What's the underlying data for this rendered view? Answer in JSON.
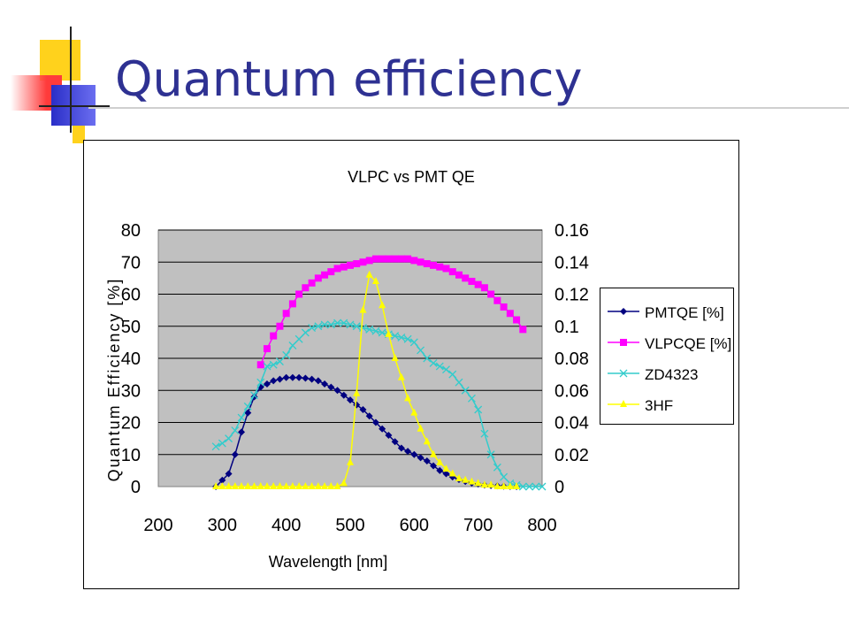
{
  "slide": {
    "title": "Quantum efficiency"
  },
  "colors": {
    "title": "#2e3192",
    "plot_bg": "#c0c0c0",
    "deco_yellow": "#ffd21c",
    "deco_red": "#ff3b3b",
    "deco_blue": "#3b3fd8"
  },
  "chart_data": {
    "type": "line",
    "title": "VLPC vs PMT QE",
    "xlabel": "Wavelength [nm]",
    "ylabel": "Quantum Efficiency [%]",
    "y2label": "",
    "xlim": [
      200,
      800
    ],
    "ylim": [
      0,
      80
    ],
    "y2lim": [
      0,
      0.16
    ],
    "x_ticks": [
      "200",
      "300",
      "400",
      "500",
      "600",
      "700",
      "800"
    ],
    "y_ticks": [
      "0",
      "10",
      "20",
      "30",
      "40",
      "50",
      "60",
      "70",
      "80"
    ],
    "y2_ticks": [
      "0",
      "0.02",
      "0.04",
      "0.06",
      "0.08",
      "0.1",
      "0.12",
      "0.14",
      "0.16"
    ],
    "grid": true,
    "legend_position": "right",
    "series": [
      {
        "name": "PMTQE [%]",
        "axis": "left",
        "color": "#000080",
        "marker": "diamond",
        "x": [
          290,
          300,
          310,
          320,
          330,
          340,
          350,
          360,
          370,
          380,
          390,
          400,
          410,
          420,
          430,
          440,
          450,
          460,
          470,
          480,
          490,
          500,
          510,
          520,
          530,
          540,
          550,
          560,
          570,
          580,
          590,
          600,
          610,
          620,
          630,
          640,
          650,
          660,
          670,
          680,
          690,
          700,
          710,
          720,
          730,
          740,
          750,
          760
        ],
        "y": [
          0,
          2,
          4,
          10,
          17,
          23,
          28,
          31,
          32,
          33,
          33.5,
          34,
          34,
          34,
          33.8,
          33.5,
          33,
          32,
          31,
          30,
          28.5,
          27,
          25.5,
          24,
          22,
          20,
          18,
          16,
          14,
          12,
          11,
          10,
          9,
          8,
          6.5,
          5,
          4,
          3,
          2.2,
          1.6,
          1.1,
          0.8,
          0.5,
          0.3,
          0.2,
          0.1,
          0.05,
          0
        ]
      },
      {
        "name": "VLPCQE [%]",
        "axis": "left",
        "color": "#ff00ff",
        "marker": "square",
        "x": [
          360,
          370,
          380,
          390,
          400,
          410,
          420,
          430,
          440,
          450,
          460,
          470,
          480,
          490,
          500,
          510,
          520,
          530,
          540,
          550,
          560,
          570,
          580,
          590,
          600,
          610,
          620,
          630,
          640,
          650,
          660,
          670,
          680,
          690,
          700,
          710,
          720,
          730,
          740,
          750,
          760,
          770
        ],
        "y": [
          38,
          43,
          47,
          50,
          54,
          57,
          60,
          62,
          63.5,
          65,
          66,
          67,
          68,
          68.5,
          69,
          69.5,
          70,
          70.5,
          71,
          71,
          71,
          71,
          71,
          71,
          70.5,
          70,
          69.5,
          69,
          68.5,
          68,
          67,
          66,
          65,
          64,
          63,
          62,
          60,
          58,
          56,
          54,
          52,
          49
        ]
      },
      {
        "name": "ZD4323",
        "axis": "right",
        "color": "#33cccc",
        "marker": "x",
        "x": [
          290,
          300,
          310,
          320,
          330,
          340,
          350,
          360,
          370,
          380,
          390,
          400,
          410,
          420,
          430,
          440,
          450,
          460,
          470,
          480,
          490,
          500,
          510,
          520,
          530,
          540,
          550,
          560,
          570,
          580,
          590,
          600,
          610,
          620,
          630,
          640,
          650,
          660,
          670,
          680,
          690,
          700,
          710,
          720,
          730,
          740,
          750,
          760,
          770,
          780,
          790,
          800
        ],
        "y": [
          0.025,
          0.027,
          0.03,
          0.035,
          0.043,
          0.05,
          0.057,
          0.065,
          0.075,
          0.076,
          0.078,
          0.082,
          0.088,
          0.092,
          0.096,
          0.099,
          0.1,
          0.101,
          0.101,
          0.102,
          0.102,
          0.101,
          0.1,
          0.099,
          0.098,
          0.097,
          0.096,
          0.095,
          0.094,
          0.093,
          0.092,
          0.09,
          0.085,
          0.08,
          0.077,
          0.075,
          0.073,
          0.07,
          0.065,
          0.06,
          0.055,
          0.048,
          0.033,
          0.02,
          0.012,
          0.006,
          0.002,
          0.001,
          0,
          0,
          0,
          0
        ]
      },
      {
        "name": "3HF",
        "axis": "right",
        "color": "#ffff00",
        "marker": "triangle",
        "x": [
          290,
          300,
          310,
          320,
          330,
          340,
          350,
          360,
          370,
          380,
          390,
          400,
          410,
          420,
          430,
          440,
          450,
          460,
          470,
          480,
          490,
          500,
          510,
          520,
          530,
          540,
          550,
          560,
          570,
          580,
          590,
          600,
          610,
          620,
          630,
          640,
          650,
          660,
          670,
          680,
          690,
          700,
          710,
          720,
          730,
          740,
          750,
          760
        ],
        "y": [
          0,
          0,
          0,
          0,
          0,
          0,
          0,
          0,
          0,
          0,
          0,
          0,
          0,
          0,
          0,
          0,
          0,
          0,
          0,
          0,
          0.002,
          0.015,
          0.058,
          0.11,
          0.132,
          0.128,
          0.113,
          0.095,
          0.08,
          0.068,
          0.055,
          0.046,
          0.036,
          0.028,
          0.02,
          0.015,
          0.011,
          0.008,
          0.005,
          0.004,
          0.003,
          0.002,
          0.001,
          0.001,
          0,
          0,
          0,
          0
        ]
      }
    ]
  }
}
